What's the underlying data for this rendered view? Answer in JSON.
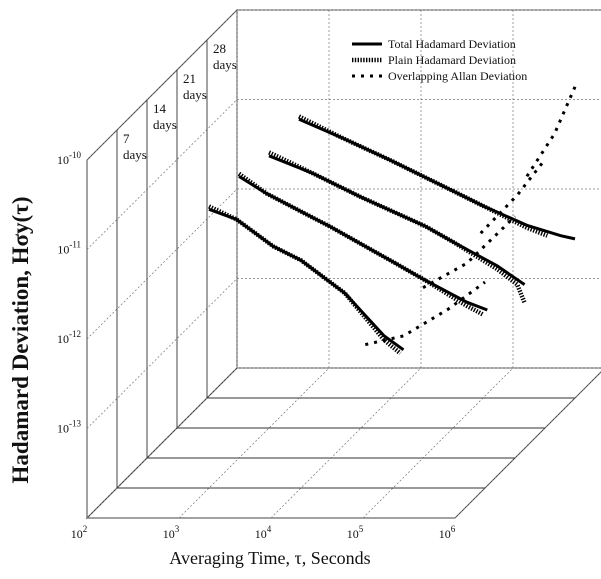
{
  "chart_data": {
    "type": "line",
    "subtype": "3d-waterfall",
    "title": "",
    "xlabel": "Averaging Time, τ, Seconds",
    "ylabel": "Hadamard Deviation, Hσy(τ)",
    "x_scale": "log",
    "y_scale": "log",
    "xlim": [
      100,
      1000000
    ],
    "ylim": [
      1e-14,
      1e-10
    ],
    "x_ticks": [
      "10^2",
      "10^3",
      "10^4",
      "10^5",
      "10^6"
    ],
    "y_ticks": [
      "10^-10",
      "10^-11",
      "10^-12",
      "10^-13"
    ],
    "depth_labels": [
      "7\ndays",
      "14\ndays",
      "21\ndays",
      "28\ndays"
    ],
    "depth_values_days": [
      7,
      14,
      21,
      28
    ],
    "legend": {
      "placement": "top-right",
      "entries": [
        {
          "label": "Total Hadamard Deviation",
          "style": "solid-thick"
        },
        {
          "label": "Plain Hadamard Deviation",
          "style": "dense-dotted"
        },
        {
          "label": "Overlapping Allan Deviation",
          "style": "sparse-dotted"
        }
      ]
    },
    "series": [
      {
        "name": "Total Hadamard Deviation",
        "groups": [
          {
            "days": 7,
            "x": [
              1000,
              2000,
              5000,
              10000,
              30000,
              80000,
              130000
            ],
            "y": [
              1.3e-11,
              1e-11,
              5e-12,
              3.5e-12,
              1.5e-12,
              5e-13,
              3.5e-13
            ]
          },
          {
            "days": 14,
            "x": [
              1000,
              2000,
              5000,
              10000,
              50000,
              100000,
              300000,
              500000
            ],
            "y": [
              1.4e-11,
              9e-12,
              5.5e-12,
              3.8e-12,
              1.5e-12,
              1e-12,
              5.5e-13,
              4.5e-13
            ]
          },
          {
            "days": 21,
            "x": [
              1000,
              3000,
              10000,
              50000,
              100000,
              300000,
              600000
            ],
            "y": [
              1.1e-11,
              7e-12,
              3.8e-12,
              1.8e-12,
              1.2e-12,
              6.5e-13,
              4e-13
            ]
          },
          {
            "days": 28,
            "x": [
              1000,
              3000,
              10000,
              50000,
              100000,
              300000,
              700000,
              1000000
            ],
            "y": [
              1.3e-11,
              8e-12,
              4.5e-12,
              2e-12,
              1.4e-12,
              8.5e-13,
              6.5e-13,
              6e-13
            ]
          }
        ]
      },
      {
        "name": "Plain Hadamard Deviation",
        "groups": [
          {
            "days": 7,
            "x": [
              1000,
              2000,
              5000,
              10000,
              30000,
              80000,
              120000
            ],
            "y": [
              1.4e-11,
              1e-11,
              5e-12,
              3.5e-12,
              1.5e-12,
              4.5e-13,
              3.2e-13
            ]
          },
          {
            "days": 14,
            "x": [
              1000,
              2000,
              5000,
              10000,
              50000,
              100000,
              300000,
              450000
            ],
            "y": [
              1.5e-11,
              9e-12,
              5.5e-12,
              3.8e-12,
              1.5e-12,
              1e-12,
              5e-13,
              4e-13
            ]
          },
          {
            "days": 21,
            "x": [
              1000,
              3000,
              10000,
              50000,
              100000,
              300000,
              500000,
              600000
            ],
            "y": [
              1.2e-11,
              7e-12,
              3.8e-12,
              1.8e-12,
              1.2e-12,
              6e-13,
              4e-13,
              2.5e-13
            ]
          },
          {
            "days": 28,
            "x": [
              1000,
              3000,
              10000,
              50000,
              100000,
              300000,
              500000
            ],
            "y": [
              1.4e-11,
              8e-12,
              4.5e-12,
              2e-12,
              1.4e-12,
              8e-13,
              6.5e-13
            ]
          }
        ]
      },
      {
        "name": "Overlapping Allan Deviation",
        "groups": [
          {
            "days": 7,
            "x": [
              50000,
              130000,
              400000,
              1000000
            ],
            "y": [
              4e-13,
              5e-13,
              1e-12,
              2e-12
            ]
          },
          {
            "days": 14,
            "x": [
              100000,
              300000,
              600000,
              1000000
            ],
            "y": [
              8e-13,
              1.5e-12,
              3e-12,
              5e-12
            ]
          },
          {
            "days": 21,
            "x": [
              200000,
              500000,
              1000000
            ],
            "y": [
              1.5e-12,
              4e-12,
              1e-11
            ]
          },
          {
            "days": 28,
            "x": [
              300000,
              600000,
              1000000
            ],
            "y": [
              3e-12,
              9e-12,
              3e-11
            ]
          }
        ]
      }
    ]
  }
}
